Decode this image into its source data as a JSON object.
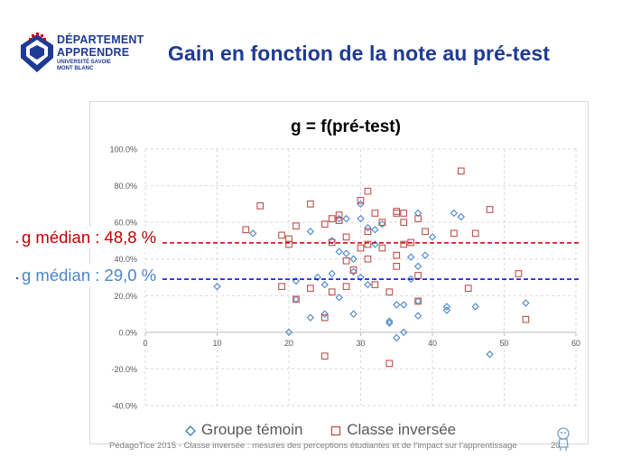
{
  "header": {
    "logo_line1": "DÉPARTEMENT",
    "logo_line2": "APPRENDRE",
    "logo_line3": "UNIVERSITÉ SAVOIE",
    "logo_line4": "MONT BLANC",
    "slide_title": "Gain en fonction de la note au pré-test"
  },
  "annotations": {
    "median_red": "g médian  : 48,8 %",
    "median_blue": "g médian  : 29,0 %"
  },
  "footer": {
    "text": "PédagoTice 2015 - Classe inversée : mesures des perceptions étudiantes et de l’impact sur l’apprentissage",
    "page_number": "20"
  },
  "colors": {
    "title_blue": "#1f3a93",
    "series_blue": "#4a86c8",
    "series_red": "#c0504d",
    "median_red": "#c00000",
    "median_blue": "#1010e0"
  },
  "chart_data": {
    "type": "scatter",
    "title": "g = f(pré-test)",
    "xlabel": "",
    "ylabel": "",
    "xlim": [
      0,
      60
    ],
    "ylim": [
      -40,
      100
    ],
    "x_ticks": [
      "0",
      "10",
      "20",
      "30",
      "40",
      "50",
      "60"
    ],
    "y_ticks": [
      "-40.0%",
      "-20.0%",
      "0.0%",
      "20.0%",
      "40.0%",
      "60.0%",
      "80.0%",
      "100.0%"
    ],
    "grid": true,
    "legend_position": "bottom",
    "reference_lines": [
      {
        "label": "g médian  : 48,8 %",
        "y": 48.8,
        "color": "#c00000"
      },
      {
        "label": "g médian  : 29,0 %",
        "y": 29.0,
        "color": "#1010e0"
      }
    ],
    "series": [
      {
        "name": "Groupe témoin",
        "marker": "diamond",
        "color": "#4a86c8",
        "points": [
          [
            10,
            25
          ],
          [
            15,
            54
          ],
          [
            20,
            0
          ],
          [
            21,
            28
          ],
          [
            21,
            18
          ],
          [
            23,
            55
          ],
          [
            23,
            8
          ],
          [
            24,
            30
          ],
          [
            25,
            26
          ],
          [
            25,
            10
          ],
          [
            26,
            32
          ],
          [
            26,
            50
          ],
          [
            27,
            44
          ],
          [
            27,
            62
          ],
          [
            27,
            19
          ],
          [
            28,
            62
          ],
          [
            28,
            43
          ],
          [
            29,
            40
          ],
          [
            29,
            10
          ],
          [
            29,
            33
          ],
          [
            30,
            30
          ],
          [
            30,
            62
          ],
          [
            30,
            70
          ],
          [
            31,
            57
          ],
          [
            31,
            26
          ],
          [
            32,
            56
          ],
          [
            32,
            48
          ],
          [
            33,
            59
          ],
          [
            34,
            5
          ],
          [
            34,
            6
          ],
          [
            35,
            15
          ],
          [
            35,
            -3
          ],
          [
            36,
            0
          ],
          [
            36,
            15
          ],
          [
            37,
            41
          ],
          [
            37,
            29
          ],
          [
            38,
            65
          ],
          [
            38,
            36
          ],
          [
            38,
            17
          ],
          [
            38,
            9
          ],
          [
            39,
            42
          ],
          [
            40,
            52
          ],
          [
            42,
            14
          ],
          [
            42,
            12
          ],
          [
            43,
            65
          ],
          [
            44,
            63
          ],
          [
            46,
            14
          ],
          [
            48,
            -12
          ],
          [
            53,
            16
          ]
        ]
      },
      {
        "name": "Classe inversée",
        "marker": "square",
        "color": "#c0504d",
        "points": [
          [
            14,
            56
          ],
          [
            16,
            69
          ],
          [
            19,
            53
          ],
          [
            19,
            25
          ],
          [
            20,
            51
          ],
          [
            20,
            48
          ],
          [
            21,
            58
          ],
          [
            21,
            18
          ],
          [
            23,
            70
          ],
          [
            23,
            24
          ],
          [
            25,
            59
          ],
          [
            25,
            8
          ],
          [
            25,
            -13
          ],
          [
            26,
            62
          ],
          [
            26,
            49
          ],
          [
            26,
            22
          ],
          [
            27,
            64
          ],
          [
            27,
            61
          ],
          [
            28,
            52
          ],
          [
            28,
            39
          ],
          [
            28,
            25
          ],
          [
            29,
            34
          ],
          [
            30,
            72
          ],
          [
            30,
            46
          ],
          [
            31,
            77
          ],
          [
            31,
            55
          ],
          [
            31,
            48
          ],
          [
            31,
            40
          ],
          [
            32,
            65
          ],
          [
            32,
            26
          ],
          [
            33,
            60
          ],
          [
            33,
            46
          ],
          [
            34,
            22
          ],
          [
            34,
            -17
          ],
          [
            35,
            66
          ],
          [
            35,
            65
          ],
          [
            35,
            42
          ],
          [
            35,
            36
          ],
          [
            36,
            65
          ],
          [
            36,
            60
          ],
          [
            36,
            48
          ],
          [
            37,
            49
          ],
          [
            38,
            62
          ],
          [
            38,
            31
          ],
          [
            38,
            17
          ],
          [
            39,
            55
          ],
          [
            43,
            54
          ],
          [
            44,
            88
          ],
          [
            45,
            24
          ],
          [
            46,
            54
          ],
          [
            48,
            67
          ],
          [
            52,
            32
          ],
          [
            53,
            7
          ]
        ]
      }
    ]
  }
}
